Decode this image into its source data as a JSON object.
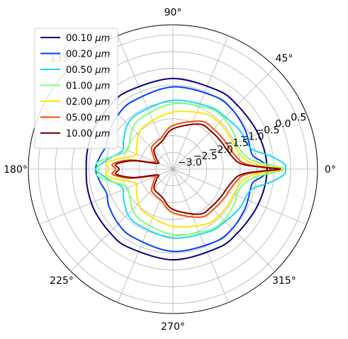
{
  "chart_data": {
    "type": "polar-line",
    "angle_unit": "degrees",
    "angle_ticks": [
      0,
      45,
      90,
      135,
      180,
      225,
      270,
      315
    ],
    "angle_tick_labels": [
      "0°",
      "45°",
      "90°",
      "135°",
      "180°",
      "225°",
      "270°",
      "315°"
    ],
    "r_scale": "log10",
    "r_lim": [
      -3.5,
      0.8
    ],
    "r_ticks": [
      -3.0,
      -2.5,
      -2.0,
      -1.5,
      -1.0,
      -0.5,
      0.0,
      0.5
    ],
    "r_tick_labels": [
      "−3.0",
      "−2.5",
      "−2.0",
      "−1.5",
      "−1.0",
      "−0.5",
      "0.0",
      "0.5"
    ],
    "r_label_angle_deg": 22.5,
    "grid": true,
    "legend": {
      "position": "upper-left"
    },
    "series": [
      {
        "name": "00.10",
        "unit": "μm",
        "color": "#00007f",
        "theta_deg": [
          0,
          10,
          20,
          30,
          45,
          60,
          90,
          120,
          135,
          150,
          160,
          170,
          180
        ],
        "r": [
          -0.7,
          -0.72,
          -0.75,
          -0.78,
          -0.8,
          -0.8,
          -0.8,
          -0.82,
          -0.84,
          -0.86,
          -0.88,
          -0.9,
          -0.92
        ]
      },
      {
        "name": "00.20",
        "unit": "μm",
        "color": "#0040ff",
        "theta_deg": [
          0,
          5,
          10,
          20,
          30,
          45,
          60,
          90,
          120,
          135,
          150,
          160,
          170,
          180
        ],
        "r": [
          -0.6,
          -0.85,
          -1.1,
          -1.1,
          -1.05,
          -1.0,
          -1.0,
          -1.05,
          -1.15,
          -1.2,
          -1.3,
          -1.4,
          -1.3,
          -1.2
        ]
      },
      {
        "name": "00.50",
        "unit": "μm",
        "color": "#1dd6f5",
        "theta_deg": [
          0,
          3,
          8,
          15,
          30,
          45,
          60,
          90,
          120,
          135,
          150,
          160,
          170,
          175,
          180
        ],
        "r": [
          -0.15,
          -0.2,
          -0.6,
          -1.1,
          -1.2,
          -1.3,
          -1.35,
          -1.45,
          -1.55,
          -1.6,
          -1.8,
          -1.9,
          -1.6,
          -1.4,
          -1.2
        ]
      },
      {
        "name": "01.00",
        "unit": "μm",
        "color": "#7dff7a",
        "theta_deg": [
          0,
          2,
          5,
          10,
          20,
          30,
          45,
          60,
          90,
          120,
          135,
          150,
          160,
          170,
          175,
          180
        ],
        "r": [
          -0.2,
          -0.5,
          -1.0,
          -1.3,
          -1.45,
          -1.4,
          -1.35,
          -1.4,
          -1.55,
          -1.7,
          -1.8,
          -2.0,
          -2.0,
          -1.55,
          -1.25,
          -1.3
        ]
      },
      {
        "name": "02.00",
        "unit": "μm",
        "color": "#ffe600",
        "theta_deg": [
          0,
          1.5,
          4,
          8,
          15,
          30,
          45,
          60,
          90,
          120,
          135,
          150,
          160,
          170,
          175,
          180
        ],
        "r": [
          -0.25,
          -0.6,
          -1.1,
          -1.35,
          -1.5,
          -1.55,
          -1.55,
          -1.6,
          -1.8,
          -1.95,
          -2.05,
          -2.25,
          -2.3,
          -1.8,
          -1.5,
          -1.6
        ]
      },
      {
        "name": "05.00",
        "unit": "μm",
        "color": "#ff4a00",
        "theta_deg": [
          0,
          1,
          3,
          6,
          12,
          20,
          30,
          45,
          60,
          90,
          110,
          120,
          135,
          150,
          160,
          168,
          175,
          180
        ],
        "r": [
          -0.3,
          -0.7,
          -1.2,
          -1.45,
          -1.6,
          -1.7,
          -1.75,
          -1.8,
          -1.85,
          -2.2,
          -2.5,
          -2.55,
          -2.6,
          -2.85,
          -2.9,
          -2.2,
          -1.7,
          -1.8
        ]
      },
      {
        "name": "10.00",
        "unit": "μm",
        "color": "#7f0000",
        "theta_deg": [
          0,
          1,
          3,
          6,
          12,
          20,
          30,
          45,
          60,
          90,
          110,
          120,
          135,
          150,
          160,
          168,
          175,
          180
        ],
        "r": [
          -0.3,
          -0.75,
          -1.3,
          -1.55,
          -1.7,
          -1.8,
          -1.85,
          -1.9,
          -1.95,
          -2.3,
          -2.6,
          -2.65,
          -2.7,
          -2.95,
          -3.0,
          -2.3,
          -1.8,
          -1.9
        ]
      }
    ]
  }
}
